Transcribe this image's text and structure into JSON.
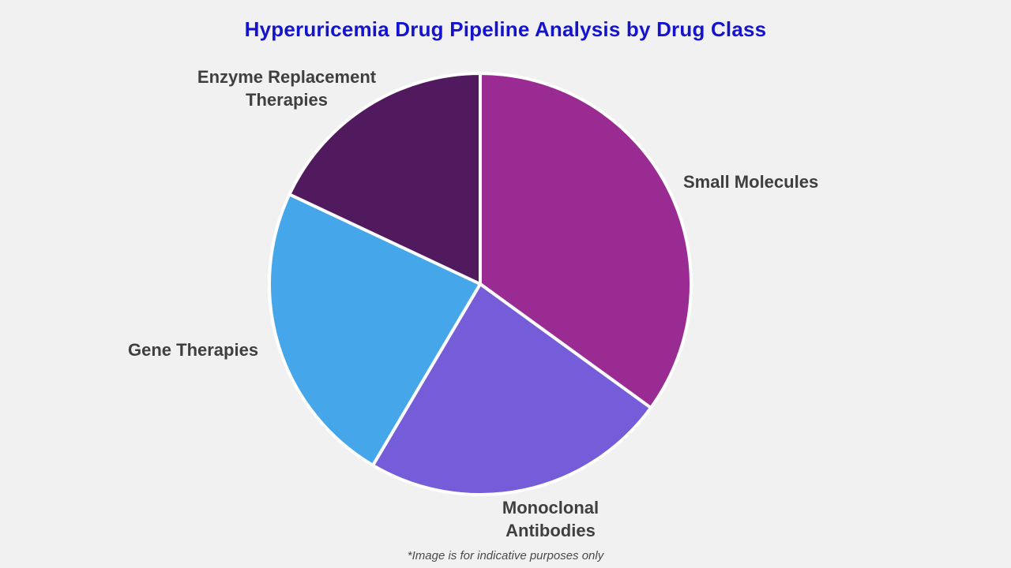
{
  "page": {
    "title": "Hyperuricemia Drug Pipeline Analysis by Drug Class",
    "footnote": "*Image is for indicative purposes only"
  },
  "colors": {
    "background": "#F1F1F1",
    "title_text": "#1414CE",
    "label_text": "#3F3F3F",
    "footnote_text": "#4A4A4A",
    "slice_divider": "#FFFFFF"
  },
  "chart_data": {
    "type": "pie",
    "title": "Hyperuricemia Drug Pipeline Analysis by Drug Class",
    "legend_position": "none",
    "label_position": "outside",
    "start_angle_deg": 0,
    "direction": "clockwise",
    "values_note": "estimated percent share; no numeric data labels are shown in the image",
    "slices": [
      {
        "label": "Small Molecules",
        "value": 35,
        "color": "#992B92"
      },
      {
        "label": "Monoclonal Antibodies",
        "value": 23.5,
        "color": "#755CD8"
      },
      {
        "label": "Gene Therapies",
        "value": 23.5,
        "color": "#45A6E9"
      },
      {
        "label": "Enzyme Replacement Therapies",
        "value": 18,
        "color": "#521A5E"
      }
    ]
  }
}
